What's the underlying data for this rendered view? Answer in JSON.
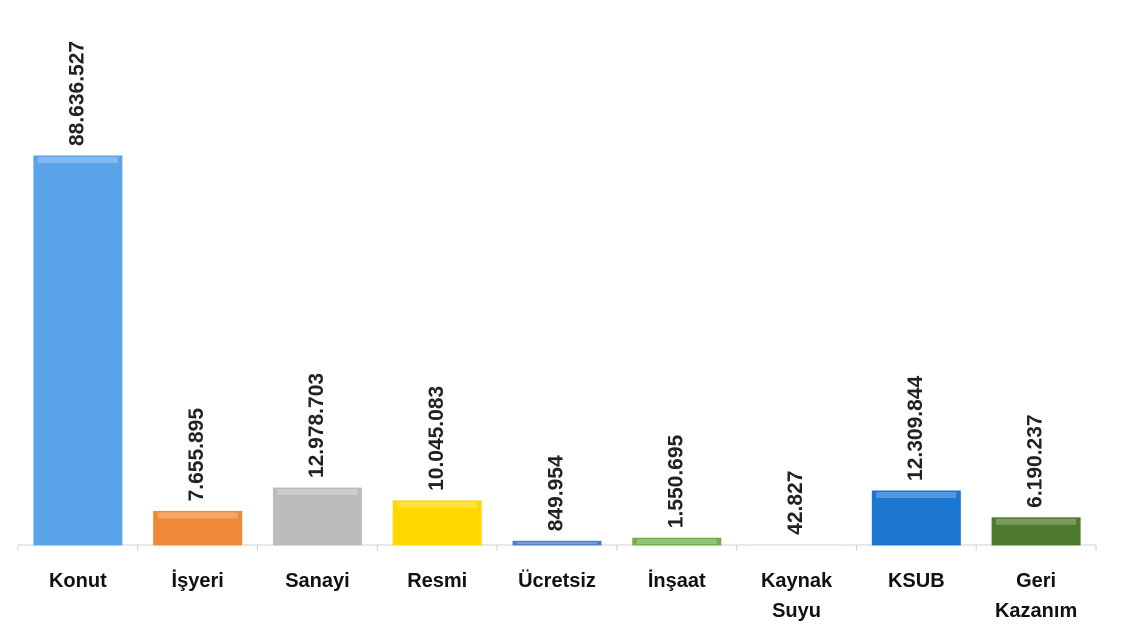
{
  "chart_data": {
    "type": "bar",
    "categories": [
      "Konut",
      "İşyeri",
      "Sanayi",
      "Resmi",
      "Ücretsiz",
      "İnşaat",
      "Kaynak Suyu",
      "KSUB",
      "Geri Kazanım"
    ],
    "values": [
      88636527,
      7655895,
      12978703,
      10045083,
      849954,
      1550695,
      42827,
      12309844,
      6190237
    ],
    "value_labels": [
      "88.636.527",
      "7.655.895",
      "12.978.703",
      "10.045.083",
      "849.954",
      "1.550.695",
      "42.827",
      "12.309.844",
      "6.190.237"
    ],
    "colors": [
      "#5ba4ea",
      "#f0883a",
      "#bcbcbc",
      "#ffd800",
      "#4f80cc",
      "#72ae4a",
      "#d9d9d9",
      "#1a76d0",
      "#4e7a2e"
    ]
  }
}
